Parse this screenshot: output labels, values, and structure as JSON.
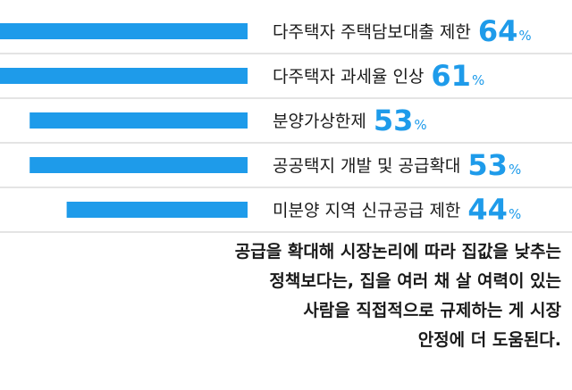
{
  "chart_data": {
    "type": "bar",
    "orientation": "horizontal",
    "categories": [
      "다주택자 주택담보대출 제한",
      "다주택자 과세율 인상",
      "분양가상한제",
      "공공택지 개발 및 공급확대",
      "미분양 지역 신규공급 제한"
    ],
    "values": [
      64,
      61,
      53,
      53,
      44
    ],
    "unit": "%",
    "xlim": [
      0,
      100
    ],
    "grid": false,
    "bar_color": "#1e9bea",
    "divider_color": "#c8c8c8"
  },
  "footnote": {
    "lines": [
      "공급을 확대해 시장논리에 따라 집값을 낮추는",
      "정책보다는, 집을 여러 채 살 여력이 있는",
      "사람을 직접적으로 규제하는 게 시장",
      "안정에 더 도움된다."
    ]
  }
}
